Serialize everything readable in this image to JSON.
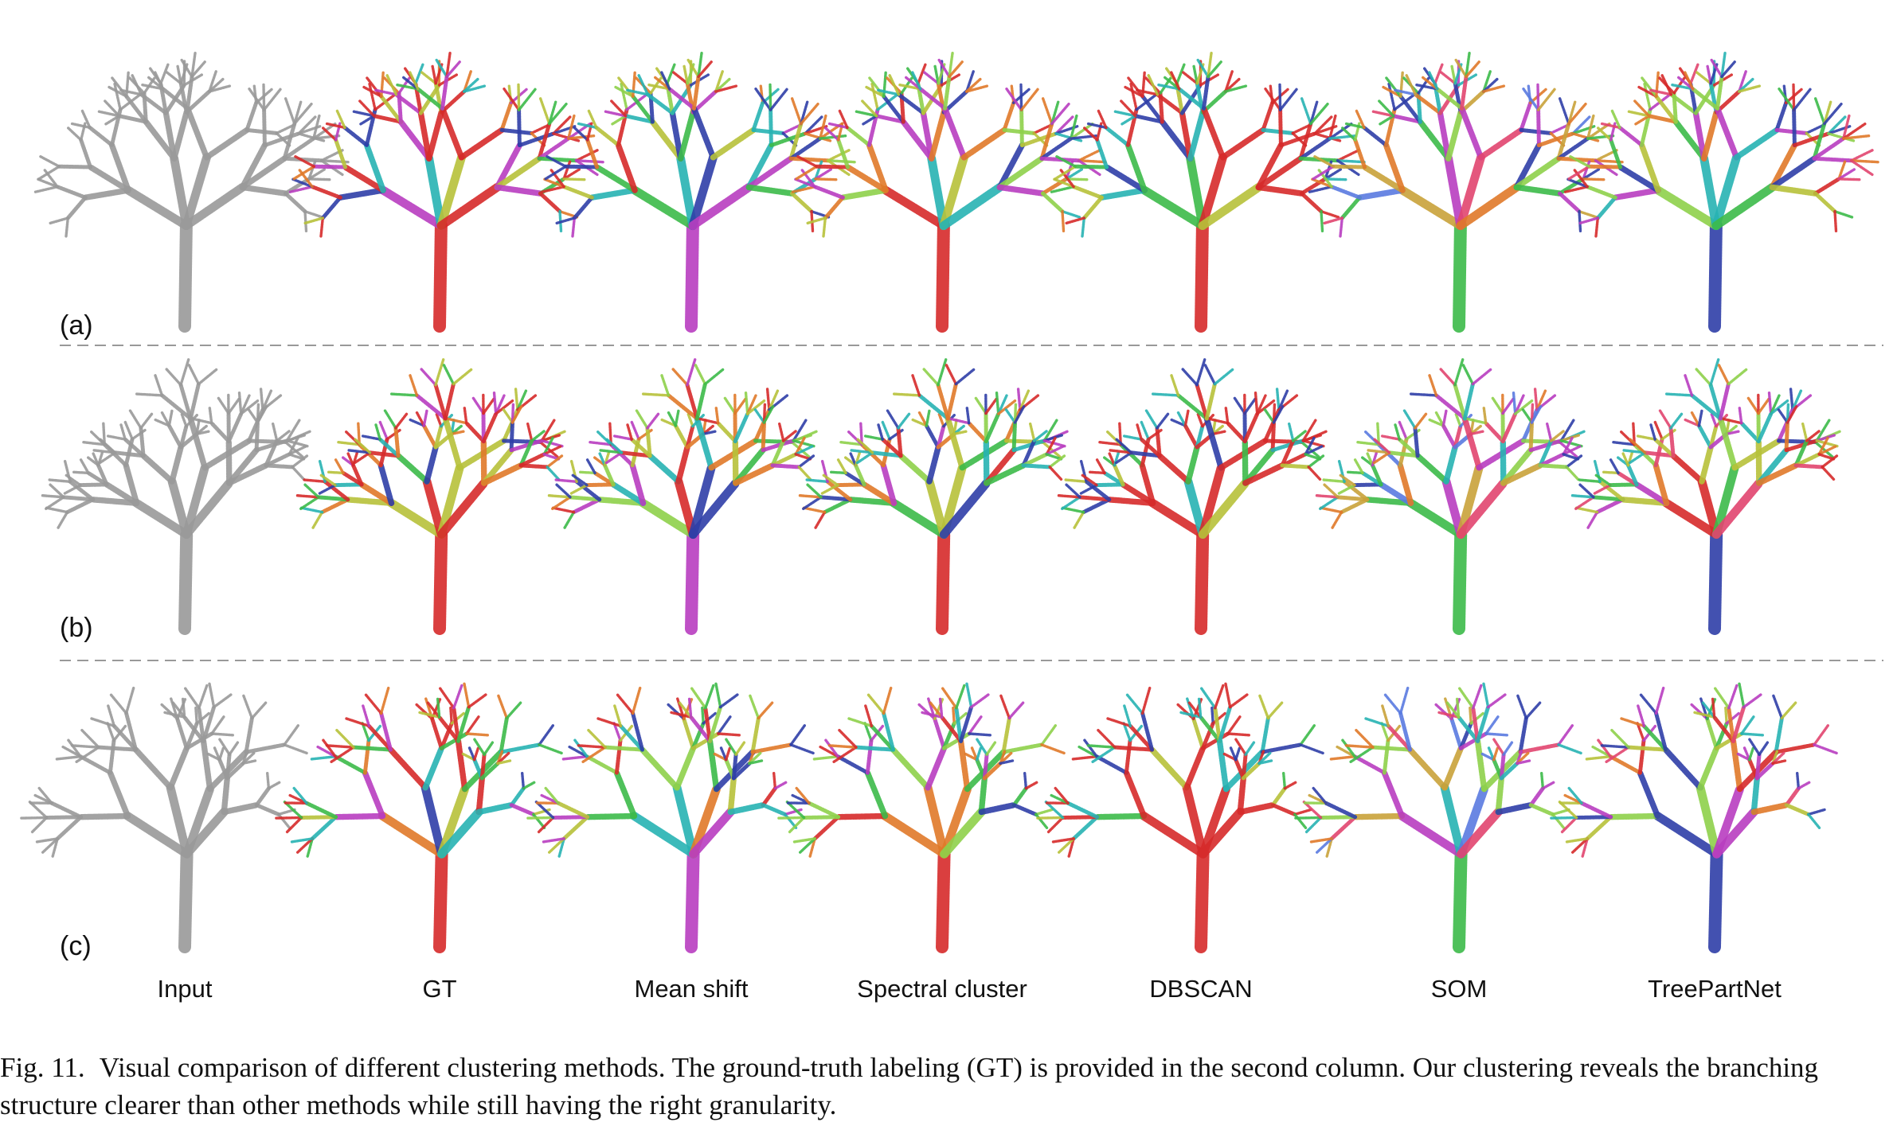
{
  "figure": {
    "rows": [
      {
        "label": "(a)"
      },
      {
        "label": "(b)"
      },
      {
        "label": "(c)"
      }
    ],
    "columns": [
      {
        "label": "Input"
      },
      {
        "label": "GT"
      },
      {
        "label": "Mean shift"
      },
      {
        "label": "Spectral cluster"
      },
      {
        "label": "DBSCAN"
      },
      {
        "label": "SOM"
      },
      {
        "label": "TreePartNet"
      }
    ],
    "input_color": "#9a9a9a",
    "palette": [
      "#d62b2b",
      "#e33c3c",
      "#3dbb4a",
      "#2f3fa8",
      "#b7c23a",
      "#27b3b3",
      "#b93ec0",
      "#e07a2a",
      "#8ed14b",
      "#c9a23a",
      "#5a7be0",
      "#e2456f",
      "#3fd79a"
    ],
    "column_palettes": [
      [
        "#9a9a9a"
      ],
      [
        "#d62b2b",
        "#d62b2b",
        "#d62b2b",
        "#3dbb4a",
        "#2f3fa8",
        "#e07a2a",
        "#b7c23a",
        "#27b3b3",
        "#b93ec0"
      ],
      [
        "#3dbb4a",
        "#2f3fa8",
        "#b93ec0",
        "#d62b2b",
        "#b7c23a",
        "#27b3b3",
        "#e07a2a",
        "#8ed14b"
      ],
      [
        "#3dbb4a",
        "#b93ec0",
        "#d62b2b",
        "#2f3fa8",
        "#27b3b3",
        "#b7c23a",
        "#8ed14b",
        "#e07a2a"
      ],
      [
        "#d62b2b",
        "#d62b2b",
        "#d62b2b",
        "#3dbb4a",
        "#b7c23a",
        "#2f3fa8",
        "#27b3b3"
      ],
      [
        "#2f3fa8",
        "#5a7be0",
        "#b93ec0",
        "#3dbb4a",
        "#27b3b3",
        "#c9a23a",
        "#e2456f",
        "#8ed14b",
        "#e07a2a"
      ],
      [
        "#3dbb4a",
        "#27b3b3",
        "#b93ec0",
        "#2f3fa8",
        "#b7c23a",
        "#d62b2b",
        "#8ed14b",
        "#e07a2a",
        "#e2456f"
      ]
    ]
  },
  "caption": {
    "fig_no": "Fig. 11.",
    "text": "Visual comparison of different clustering methods. The ground-truth labeling (GT) is provided in the second column. Our clustering reveals the branching structure clearer than other methods while still having the right granularity."
  }
}
